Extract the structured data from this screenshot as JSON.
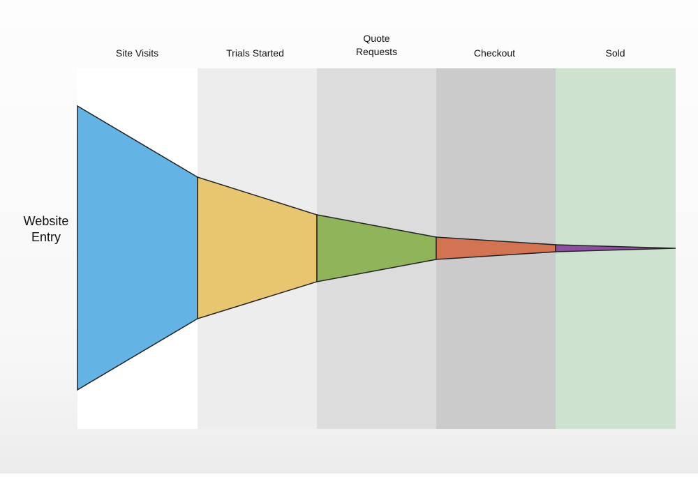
{
  "entry_label": "Website\nEntry",
  "stages": [
    {
      "label": "Site Visits",
      "band_color": "#ffffff",
      "segment_color": "#63b3e5"
    },
    {
      "label": "Trials Started",
      "band_color": "#ededed",
      "segment_color": "#e8c66f"
    },
    {
      "label": "Quote\nRequests",
      "band_color": "#dcdcdc",
      "segment_color": "#8fb459"
    },
    {
      "label": "Checkout",
      "band_color": "#cbcbcb",
      "segment_color": "#d27452"
    },
    {
      "label": "Sold",
      "band_color": "#cde3cf",
      "segment_color": "#8e4fa0"
    }
  ]
}
